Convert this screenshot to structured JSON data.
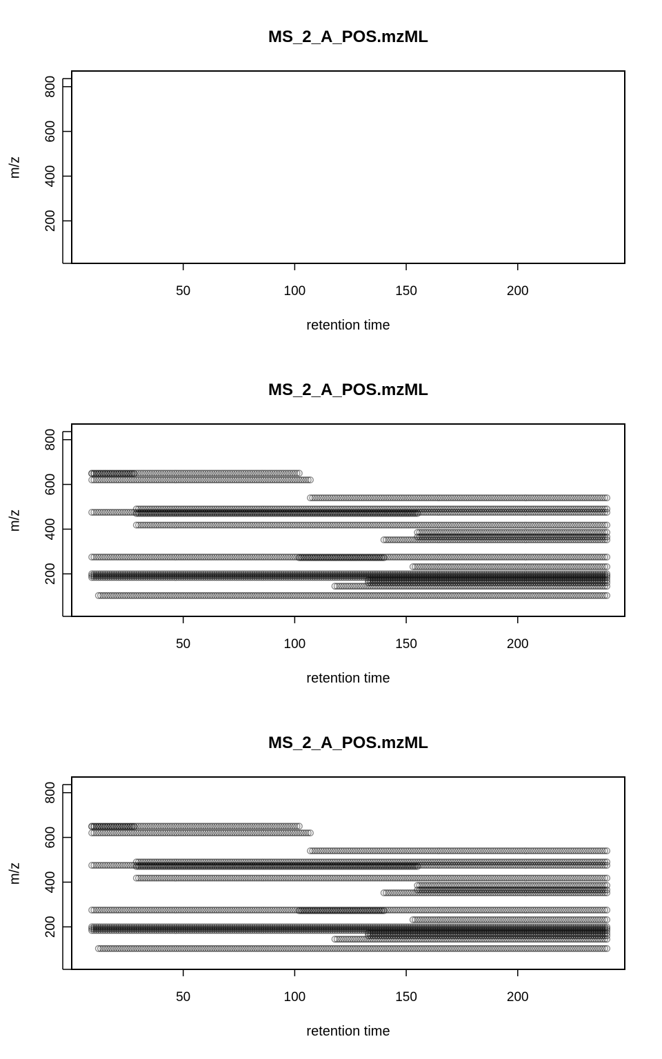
{
  "chart_data": [
    {
      "type": "scatter",
      "title": "MS_2_A_POS.mzML",
      "xlabel": "retention time",
      "ylabel": "m/z",
      "xlim": [
        0,
        248
      ],
      "ylim": [
        10,
        870
      ],
      "x_ticks": [
        50,
        100,
        150,
        200
      ],
      "y_ticks": [
        200,
        400,
        600,
        800
      ],
      "grid": false,
      "point_style": "open circles, semi-transparent black",
      "series": []
    },
    {
      "type": "scatter",
      "title": "MS_2_A_POS.mzML",
      "xlabel": "retention time",
      "ylabel": "m/z",
      "xlim": [
        0,
        248
      ],
      "ylim": [
        10,
        870
      ],
      "x_ticks": [
        50,
        100,
        150,
        200
      ],
      "y_ticks": [
        200,
        400,
        600,
        800
      ],
      "grid": false,
      "point_style": "open circles, semi-transparent black",
      "series": [
        {
          "mz": 650,
          "rt_start": 9,
          "rt_end": 102
        },
        {
          "mz": 648,
          "rt_start": 9,
          "rt_end": 28
        },
        {
          "mz": 620,
          "rt_start": 9,
          "rt_end": 107
        },
        {
          "mz": 540,
          "rt_start": 107,
          "rt_end": 240
        },
        {
          "mz": 490,
          "rt_start": 29,
          "rt_end": 240
        },
        {
          "mz": 475,
          "rt_start": 9,
          "rt_end": 240
        },
        {
          "mz": 470,
          "rt_start": 29,
          "rt_end": 155
        },
        {
          "mz": 418,
          "rt_start": 29,
          "rt_end": 240
        },
        {
          "mz": 385,
          "rt_start": 155,
          "rt_end": 240
        },
        {
          "mz": 365,
          "rt_start": 155,
          "rt_end": 240
        },
        {
          "mz": 352,
          "rt_start": 140,
          "rt_end": 240
        },
        {
          "mz": 275,
          "rt_start": 9,
          "rt_end": 240
        },
        {
          "mz": 272,
          "rt_start": 102,
          "rt_end": 140
        },
        {
          "mz": 232,
          "rt_start": 153,
          "rt_end": 240
        },
        {
          "mz": 200,
          "rt_start": 9,
          "rt_end": 240
        },
        {
          "mz": 192,
          "rt_start": 9,
          "rt_end": 240
        },
        {
          "mz": 184,
          "rt_start": 9,
          "rt_end": 240
        },
        {
          "mz": 172,
          "rt_start": 133,
          "rt_end": 240
        },
        {
          "mz": 160,
          "rt_start": 133,
          "rt_end": 240
        },
        {
          "mz": 145,
          "rt_start": 118,
          "rt_end": 240
        },
        {
          "mz": 103,
          "rt_start": 12,
          "rt_end": 240
        }
      ]
    },
    {
      "type": "scatter",
      "title": "MS_2_A_POS.mzML",
      "xlabel": "retention time",
      "ylabel": "m/z",
      "xlim": [
        0,
        248
      ],
      "ylim": [
        10,
        870
      ],
      "x_ticks": [
        50,
        100,
        150,
        200
      ],
      "y_ticks": [
        200,
        400,
        600,
        800
      ],
      "grid": false,
      "point_style": "open circles, semi-transparent black",
      "series": [
        {
          "mz": 650,
          "rt_start": 9,
          "rt_end": 102
        },
        {
          "mz": 648,
          "rt_start": 9,
          "rt_end": 28
        },
        {
          "mz": 620,
          "rt_start": 9,
          "rt_end": 107
        },
        {
          "mz": 540,
          "rt_start": 107,
          "rt_end": 240
        },
        {
          "mz": 490,
          "rt_start": 29,
          "rt_end": 240
        },
        {
          "mz": 475,
          "rt_start": 9,
          "rt_end": 240
        },
        {
          "mz": 470,
          "rt_start": 29,
          "rt_end": 155
        },
        {
          "mz": 418,
          "rt_start": 29,
          "rt_end": 240
        },
        {
          "mz": 385,
          "rt_start": 155,
          "rt_end": 240
        },
        {
          "mz": 365,
          "rt_start": 155,
          "rt_end": 240
        },
        {
          "mz": 352,
          "rt_start": 140,
          "rt_end": 240
        },
        {
          "mz": 275,
          "rt_start": 9,
          "rt_end": 240
        },
        {
          "mz": 272,
          "rt_start": 102,
          "rt_end": 140
        },
        {
          "mz": 232,
          "rt_start": 153,
          "rt_end": 240
        },
        {
          "mz": 200,
          "rt_start": 9,
          "rt_end": 240
        },
        {
          "mz": 192,
          "rt_start": 9,
          "rt_end": 240
        },
        {
          "mz": 184,
          "rt_start": 9,
          "rt_end": 240
        },
        {
          "mz": 172,
          "rt_start": 133,
          "rt_end": 240
        },
        {
          "mz": 160,
          "rt_start": 133,
          "rt_end": 240
        },
        {
          "mz": 145,
          "rt_start": 118,
          "rt_end": 240
        },
        {
          "mz": 103,
          "rt_start": 12,
          "rt_end": 240
        }
      ]
    }
  ]
}
